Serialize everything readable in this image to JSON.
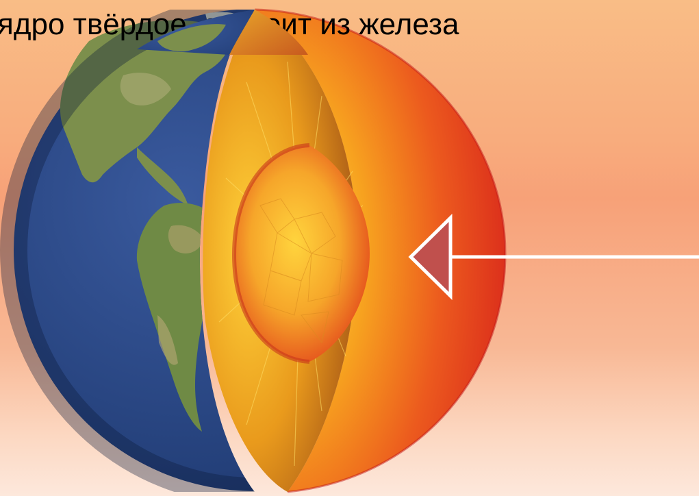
{
  "slide": {
    "title": "ядро твёрдое, состоит из железа"
  },
  "illustration": {
    "subject": "earth-cutaway-icon",
    "layers": [
      "crust",
      "mantle",
      "outer-core",
      "inner-core"
    ],
    "colors": {
      "ocean": "#25407a",
      "land": "#7a8f4a",
      "mantle": "#e8391f",
      "outer_core": "#f6b62a",
      "inner_core": "#f29a21",
      "arrow_fill": "#c0504d",
      "arrow_outline": "#ffffff"
    }
  },
  "pointer": {
    "icon": "arrow-left-icon"
  }
}
